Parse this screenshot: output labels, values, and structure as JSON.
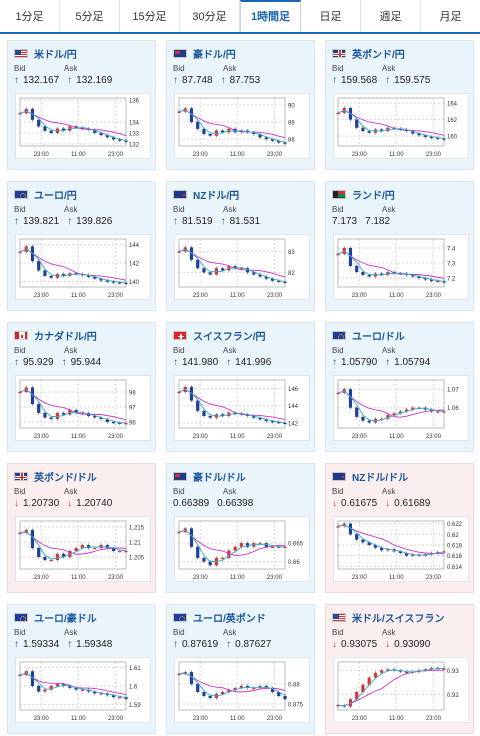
{
  "tabs": [
    "1分足",
    "5分足",
    "15分足",
    "30分足",
    "1時間足",
    "日足",
    "週足",
    "月足"
  ],
  "active_tab": 4,
  "labels": {
    "bid": "Bid",
    "ask": "Ask"
  },
  "colors": {
    "up_bg": "#e9f4fb",
    "down_bg": "#fbeeee",
    "title": "#1a56a0",
    "up_arrow": "#1a56a0",
    "down_arrow": "#c0392b",
    "ma_line": "#cc33cc",
    "ma2_line": "#33aacc"
  },
  "cards": [
    {
      "pair": "米ドル/円",
      "flag": "us",
      "trend": "up",
      "bid": "132.167",
      "ask": "132.169",
      "chart_data": {
        "type": "line",
        "x_ticks": [
          "23:00",
          "11:00",
          "23:00"
        ],
        "y_ticks": [
          "136",
          "134",
          "133",
          "132"
        ],
        "ylim": [
          131.8,
          136.2
        ],
        "series": [
          {
            "values": [
              134.8,
              135.2,
              134.2,
              133.6,
              133.2,
              133.0,
              133.4,
              133.2,
              133.6,
              133.5,
              133.4,
              133.3,
              133.0,
              132.8,
              132.6,
              132.4,
              132.3,
              132.2
            ]
          }
        ]
      }
    },
    {
      "pair": "豪ドル/円",
      "flag": "au",
      "trend": "up",
      "bid": "87.748",
      "ask": "87.753",
      "chart_data": {
        "type": "line",
        "x_ticks": [
          "23:00",
          "11:00",
          "23:00"
        ],
        "y_ticks": [
          "90",
          "89",
          "88"
        ],
        "ylim": [
          87.6,
          90.4
        ],
        "series": [
          {
            "values": [
              89.6,
              89.8,
              89.0,
              88.6,
              88.3,
              88.2,
              88.5,
              88.4,
              88.6,
              88.4,
              88.5,
              88.4,
              88.3,
              88.1,
              88.0,
              87.9,
              87.8,
              87.75
            ]
          }
        ]
      }
    },
    {
      "pair": "英ポンド/円",
      "flag": "gb",
      "trend": "up",
      "bid": "159.568",
      "ask": "159.575",
      "chart_data": {
        "type": "line",
        "x_ticks": [
          "23:00",
          "11:00",
          "23:00"
        ],
        "y_ticks": [
          "164",
          "162",
          "160"
        ],
        "ylim": [
          158.8,
          164.6
        ],
        "series": [
          {
            "values": [
              162.8,
              163.4,
              162.0,
              161.0,
              160.6,
              160.4,
              160.8,
              160.6,
              161.0,
              160.9,
              160.8,
              160.6,
              160.3,
              160.1,
              159.9,
              159.8,
              159.7,
              159.6
            ]
          }
        ]
      }
    },
    {
      "pair": "ユーロ/円",
      "flag": "eu",
      "trend": "up",
      "bid": "139.821",
      "ask": "139.826",
      "chart_data": {
        "type": "line",
        "x_ticks": [
          "23:00",
          "11:00",
          "23:00"
        ],
        "y_ticks": [
          "144",
          "142",
          "140"
        ],
        "ylim": [
          139.4,
          144.6
        ],
        "series": [
          {
            "values": [
              143.2,
              143.8,
              142.2,
              141.2,
              140.6,
              140.4,
              140.8,
              140.6,
              140.9,
              140.8,
              140.7,
              140.5,
              140.3,
              140.1,
              140.0,
              139.9,
              139.85,
              139.8
            ]
          }
        ]
      }
    },
    {
      "pair": "NZドル/円",
      "flag": "nz",
      "trend": "up",
      "bid": "81.519",
      "ask": "81.531",
      "chart_data": {
        "type": "line",
        "x_ticks": [
          "23:00",
          "11:00",
          "23:00"
        ],
        "y_ticks": [
          "83",
          "82"
        ],
        "ylim": [
          81.3,
          83.6
        ],
        "series": [
          {
            "values": [
              83.0,
              83.2,
              82.6,
              82.2,
              82.0,
              81.9,
              82.2,
              82.1,
              82.3,
              82.2,
              82.2,
              82.0,
              81.9,
              81.8,
              81.7,
              81.6,
              81.55,
              81.52
            ]
          }
        ]
      }
    },
    {
      "pair": "ランド/円",
      "flag": "za",
      "trend": "none",
      "bid": "7.173",
      "ask": "7.182",
      "chart_data": {
        "type": "line",
        "x_ticks": [
          "23:00",
          "11:00",
          "23:00"
        ],
        "y_ticks": [
          "7.4",
          "7.3",
          "7.2"
        ],
        "ylim": [
          7.14,
          7.46
        ],
        "series": [
          {
            "values": [
              7.36,
              7.4,
              7.28,
              7.24,
              7.22,
              7.21,
              7.23,
              7.22,
              7.24,
              7.23,
              7.23,
              7.22,
              7.21,
              7.2,
              7.19,
              7.18,
              7.18,
              7.17
            ]
          }
        ]
      }
    },
    {
      "pair": "カナダドル/円",
      "flag": "ca",
      "trend": "up",
      "bid": "95.929",
      "ask": "95.944",
      "chart_data": {
        "type": "line",
        "x_ticks": [
          "23:00",
          "11:00",
          "23:00"
        ],
        "y_ticks": [
          "98",
          "97",
          "96"
        ],
        "ylim": [
          95.6,
          98.8
        ],
        "series": [
          {
            "values": [
              98.0,
              98.3,
              97.2,
              96.6,
              96.3,
              96.2,
              96.6,
              96.5,
              96.8,
              96.6,
              96.6,
              96.4,
              96.3,
              96.2,
              96.0,
              95.95,
              95.9,
              95.93
            ]
          }
        ]
      }
    },
    {
      "pair": "スイスフラン/円",
      "flag": "ch",
      "trend": "up",
      "bid": "141.980",
      "ask": "141.996",
      "chart_data": {
        "type": "line",
        "x_ticks": [
          "23:00",
          "11:00",
          "23:00"
        ],
        "y_ticks": [
          "146",
          "144",
          "142"
        ],
        "ylim": [
          141.4,
          147.0
        ],
        "series": [
          {
            "values": [
              145.6,
              146.2,
              144.6,
              143.4,
              142.8,
              142.6,
              143.0,
              142.8,
              143.2,
              143.1,
              143.0,
              142.8,
              142.6,
              142.4,
              142.2,
              142.1,
              142.0,
              141.98
            ]
          }
        ]
      }
    },
    {
      "pair": "ユーロ/ドル",
      "flag": "eu-us",
      "trend": "up",
      "bid": "1.05790",
      "ask": "1.05794",
      "chart_data": {
        "type": "line",
        "x_ticks": [
          "23:00",
          "11:00",
          "23:00"
        ],
        "y_ticks": [
          "1.07",
          "1.06"
        ],
        "ylim": [
          1.049,
          1.075
        ],
        "series": [
          {
            "values": [
              1.068,
              1.07,
              1.06,
              1.055,
              1.053,
              1.052,
              1.054,
              1.054,
              1.056,
              1.057,
              1.058,
              1.059,
              1.06,
              1.06,
              1.059,
              1.058,
              1.058,
              1.058
            ]
          }
        ]
      }
    },
    {
      "pair": "英ポンド/ドル",
      "flag": "gb-us",
      "trend": "down",
      "bid": "1.20730",
      "ask": "1.20740",
      "chart_data": {
        "type": "line",
        "x_ticks": [
          "23:00",
          "11:00",
          "23:00"
        ],
        "y_ticks": [
          "1.215",
          "1.21",
          "1.205"
        ],
        "ylim": [
          1.201,
          1.217
        ],
        "series": [
          {
            "values": [
              1.213,
              1.214,
              1.208,
              1.205,
              1.204,
              1.204,
              1.206,
              1.205,
              1.207,
              1.208,
              1.209,
              1.208,
              1.208,
              1.209,
              1.208,
              1.207,
              1.207,
              1.207
            ]
          }
        ]
      }
    },
    {
      "pair": "豪ドル/ドル",
      "flag": "au-us",
      "trend": "none",
      "bid": "0.66389",
      "ask": "0.66398",
      "chart_data": {
        "type": "line",
        "x_ticks": [
          "23:00",
          "11:00",
          "23:00"
        ],
        "y_ticks": [
          "0.665",
          "0.66"
        ],
        "ylim": [
          0.658,
          0.671
        ],
        "series": [
          {
            "values": [
              0.668,
              0.669,
              0.664,
              0.661,
              0.66,
              0.659,
              0.661,
              0.661,
              0.663,
              0.664,
              0.665,
              0.664,
              0.665,
              0.665,
              0.664,
              0.664,
              0.664,
              0.664
            ]
          }
        ]
      }
    },
    {
      "pair": "NZドル/ドル",
      "flag": "nz-us",
      "trend": "down",
      "bid": "0.61675",
      "ask": "0.61689",
      "chart_data": {
        "type": "line",
        "x_ticks": [
          "23:00",
          "11:00",
          "23:00"
        ],
        "y_ticks": [
          "0.622",
          "0.62",
          "0.618",
          "0.616",
          "0.614"
        ],
        "ylim": [
          0.6135,
          0.6225
        ],
        "series": [
          {
            "values": [
              0.6215,
              0.622,
              0.62,
              0.619,
              0.6185,
              0.618,
              0.6175,
              0.617,
              0.6172,
              0.6168,
              0.6165,
              0.616,
              0.6162,
              0.616,
              0.6163,
              0.6165,
              0.6167,
              0.6168
            ]
          }
        ]
      }
    },
    {
      "pair": "ユーロ/豪ドル",
      "flag": "eu-au",
      "trend": "up",
      "bid": "1.59334",
      "ask": "1.59348",
      "chart_data": {
        "type": "line",
        "x_ticks": [
          "23:00",
          "11:00",
          "23:00"
        ],
        "y_ticks": [
          "1.61",
          "1.6",
          "1.59"
        ],
        "ylim": [
          1.587,
          1.613
        ],
        "series": [
          {
            "values": [
              1.606,
              1.608,
              1.6,
              1.597,
              1.598,
              1.6,
              1.601,
              1.6,
              1.599,
              1.598,
              1.598,
              1.597,
              1.596,
              1.596,
              1.595,
              1.594,
              1.594,
              1.593
            ]
          }
        ]
      }
    },
    {
      "pair": "ユーロ/英ポンド",
      "flag": "eu-gb",
      "trend": "up",
      "bid": "0.87619",
      "ask": "0.87627",
      "chart_data": {
        "type": "line",
        "x_ticks": [
          "23:00",
          "11:00",
          "23:00"
        ],
        "y_ticks": [
          "0.88",
          "0.875"
        ],
        "ylim": [
          0.8735,
          0.8855
        ],
        "series": [
          {
            "values": [
              0.8825,
              0.883,
              0.88,
              0.878,
              0.877,
              0.8765,
              0.8775,
              0.878,
              0.8785,
              0.879,
              0.8795,
              0.879,
              0.879,
              0.8795,
              0.879,
              0.878,
              0.877,
              0.8762
            ]
          }
        ]
      }
    },
    {
      "pair": "米ドル/スイスフラン",
      "flag": "us-ch",
      "trend": "down",
      "bid": "0.93075",
      "ask": "0.93090",
      "chart_data": {
        "type": "line",
        "x_ticks": [
          "23:00",
          "11:00",
          "23:00"
        ],
        "y_ticks": [
          "0.93",
          "0.92"
        ],
        "ylim": [
          0.9135,
          0.9335
        ],
        "series": [
          {
            "values": [
              0.9155,
              0.915,
              0.918,
              0.921,
              0.924,
              0.927,
              0.929,
              0.93,
              0.9305,
              0.93,
              0.9295,
              0.929,
              0.9295,
              0.93,
              0.9305,
              0.931,
              0.9308,
              0.9308
            ]
          }
        ]
      }
    }
  ]
}
